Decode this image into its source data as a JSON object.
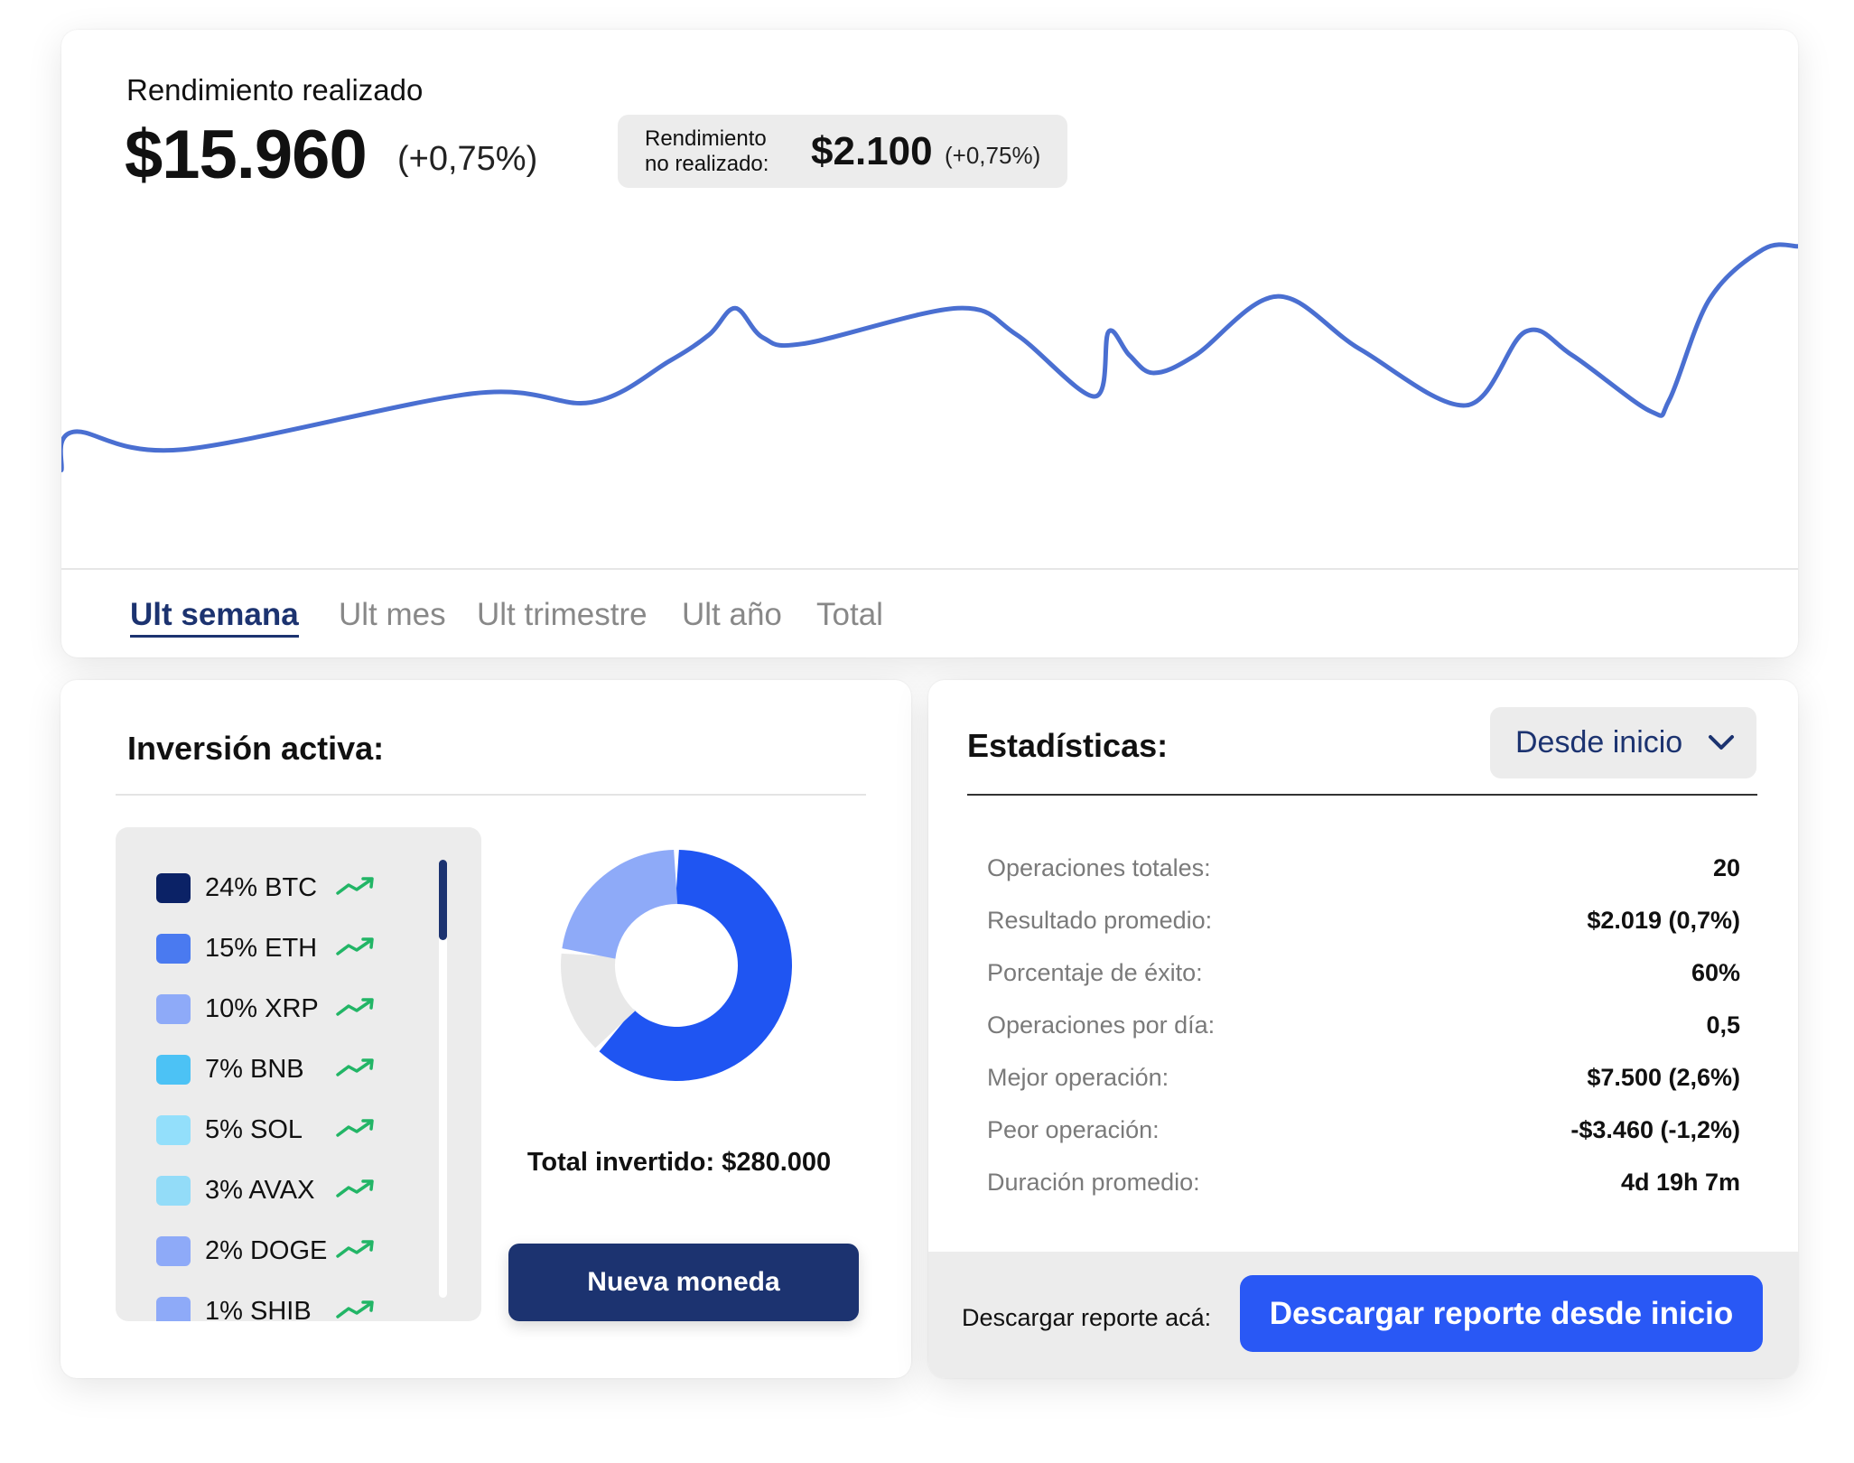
{
  "realized": {
    "title": "Rendimiento realizado",
    "value": "$15.960",
    "change": "(+0,75%)"
  },
  "unrealized": {
    "label": "Rendimiento no realizado:",
    "value": "$2.100",
    "change": "(+0,75%)"
  },
  "chart_data": {
    "type": "line",
    "color": "#4a6fd1",
    "points": [
      [
        0,
        21
      ],
      [
        0.7,
        34
      ],
      [
        7,
        28
      ],
      [
        23.7,
        47
      ],
      [
        30.5,
        44
      ],
      [
        35,
        58
      ],
      [
        37.3,
        67
      ],
      [
        38.8,
        76
      ],
      [
        40.4,
        66
      ],
      [
        42.8,
        64
      ],
      [
        51.6,
        76
      ],
      [
        55,
        67
      ],
      [
        59.5,
        46
      ],
      [
        60.3,
        68
      ],
      [
        61.5,
        60
      ],
      [
        62.9,
        54
      ],
      [
        65.3,
        60
      ],
      [
        70,
        80
      ],
      [
        74.8,
        62
      ],
      [
        80.9,
        43
      ],
      [
        84.3,
        68
      ],
      [
        87,
        60
      ],
      [
        91.5,
        41
      ],
      [
        92.6,
        45
      ],
      [
        94.9,
        79
      ],
      [
        98,
        96
      ],
      [
        100,
        97
      ]
    ]
  },
  "tabs": [
    {
      "label": "Ult semana",
      "active": true
    },
    {
      "label": "Ult mes"
    },
    {
      "label": "Ult trimestre"
    },
    {
      "label": "Ult año"
    },
    {
      "label": "Total"
    }
  ],
  "investment": {
    "title": "Inversión activa:",
    "items": [
      {
        "label": "24% BTC",
        "color": "#0b2266",
        "icon": "trending-up-icon"
      },
      {
        "label": "15% ETH",
        "color": "#4a7af0",
        "icon": "trending-up-icon"
      },
      {
        "label": "10% XRP",
        "color": "#8eaaf8",
        "icon": "trending-up-icon"
      },
      {
        "label": "7% BNB",
        "color": "#4cc2f5",
        "icon": "trending-up-icon"
      },
      {
        "label": "5% SOL",
        "color": "#93dffb",
        "icon": "trending-up-icon"
      },
      {
        "label": "3% AVAX",
        "color": "#93dcf8",
        "icon": "trending-up-icon"
      },
      {
        "label": "2% DOGE",
        "color": "#8eaaf8",
        "icon": "trending-up-icon"
      },
      {
        "label": "1% SHIB",
        "color": "#8eaaf8",
        "icon": "trending-up-icon"
      }
    ],
    "trend_color": "#22b566",
    "donut": [
      {
        "fraction": 0.62,
        "color": "#1f55f2"
      },
      {
        "fraction": 0.15,
        "color": "#e8e8e8"
      },
      {
        "fraction": 0.23,
        "color": "#8eaaf8"
      }
    ],
    "total": "Total invertido: $280.000",
    "new_button": "Nueva moneda"
  },
  "stats": {
    "title": "Estadísticas:",
    "period": "Desde inicio",
    "rows": [
      {
        "label": "Operaciones totales:",
        "value": "20"
      },
      {
        "label": "Resultado promedio:",
        "value": "$2.019 (0,7%)"
      },
      {
        "label": "Porcentaje de éxito:",
        "value": "60%"
      },
      {
        "label": "Operaciones por día:",
        "value": "0,5"
      },
      {
        "label": "Mejor operación:",
        "value": "$7.500 (2,6%)"
      },
      {
        "label": "Peor operación:",
        "value": "-$3.460 (-1,2%)"
      },
      {
        "label": "Duración promedio:",
        "value": "4d 19h 7m"
      }
    ],
    "download_label": "Descargar reporte acá:",
    "download_button": "Descargar reporte desde inicio"
  }
}
